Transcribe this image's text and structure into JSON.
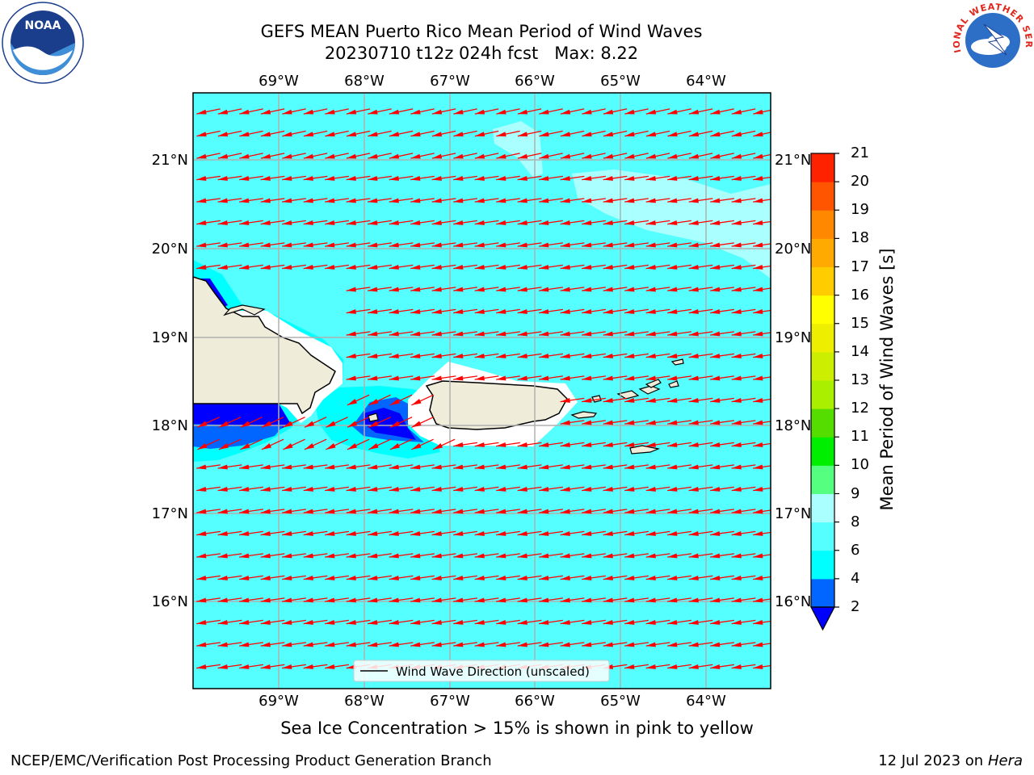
{
  "title": {
    "line1": "GEFS MEAN Puerto Rico Mean Period of Wind Waves",
    "line2": "20230710 t12z 024h fcst   Max: 8.22"
  },
  "logos": {
    "left_icon": "noaa-logo-icon",
    "right_icon": "nws-logo-icon",
    "right_text": "NATIONAL WEATHER SERVICE"
  },
  "map": {
    "lon_labels": [
      "69°W",
      "68°W",
      "67°W",
      "66°W",
      "65°W",
      "64°W"
    ],
    "lat_labels": [
      "21°N",
      "20°N",
      "19°N",
      "18°N",
      "17°N",
      "16°N"
    ],
    "ocean_color": "#55ffff",
    "land_color": "#efecd9",
    "arrow_color": "#ff0000",
    "legend_label": "Wind Wave Direction (unscaled)"
  },
  "colorbar": {
    "title": "Mean Period of Wind Waves [s]",
    "levels": [
      "2",
      "4",
      "6",
      "8",
      "9",
      "10",
      "11",
      "12",
      "13",
      "14",
      "15",
      "16",
      "17",
      "18",
      "19",
      "20",
      "21"
    ],
    "colors": [
      "#0066ff",
      "#00ffff",
      "#55ffff",
      "#aaffff",
      "#55ff80",
      "#00ee00",
      "#55dd00",
      "#aaee00",
      "#ccee00",
      "#eeee00",
      "#ffff00",
      "#ffcc00",
      "#ffaa00",
      "#ff8800",
      "#ff5500",
      "#ff2200"
    ],
    "under_color": "#0000ff",
    "over_color": "#ff0000"
  },
  "caption": "Sea Ice Concentration > 15% is shown in pink to yellow",
  "footer": {
    "left": "NCEP/EMC/Verification Post Processing Product Generation Branch",
    "right_date": "12 Jul 2023 on ",
    "right_host": "Hera"
  }
}
